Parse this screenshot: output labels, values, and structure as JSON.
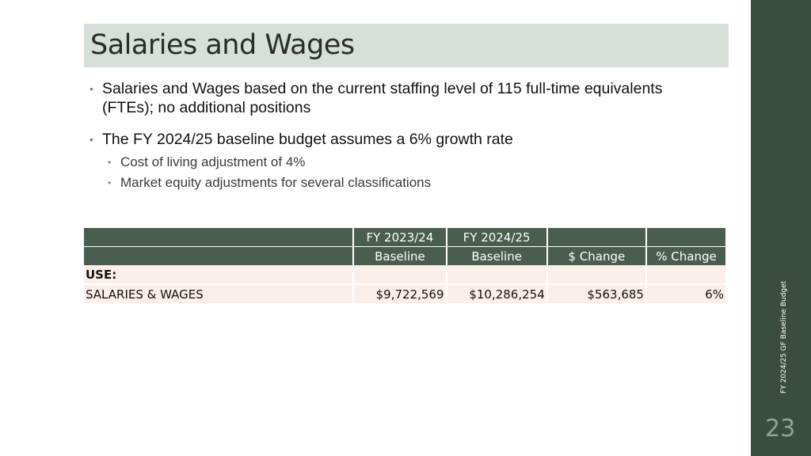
{
  "slide": {
    "title": "Salaries and Wages",
    "page_number": "23",
    "side_label": "FY 2024/25 GF Baseline Budget"
  },
  "bullets": [
    {
      "text": "Salaries and Wages based on the current staffing level of 115 full-time equivalents (FTEs); no additional positions",
      "sub": []
    },
    {
      "text": "The FY 2024/25 baseline budget assumes a 6% growth rate",
      "sub": [
        "Cost of living adjustment of 4%",
        "Market equity adjustments for several classifications"
      ]
    }
  ],
  "table": {
    "header_row1": [
      "",
      "FY 2023/24",
      "FY 2024/25",
      "",
      ""
    ],
    "header_row2": [
      "",
      "Baseline",
      "Baseline",
      "$ Change",
      "% Change"
    ],
    "section_label": "USE:",
    "rows": [
      {
        "label": "SALARIES & WAGES",
        "fy2324": "$9,722,569",
        "fy2425": "$10,286,254",
        "change": "$563,685",
        "pct_change": "6%"
      }
    ]
  },
  "colors": {
    "title_bg": "#d6e0d8",
    "sidebar_bg": "#394e40",
    "table_header_bg": "#4a5e50",
    "table_row_bg": "#fbefe9"
  }
}
